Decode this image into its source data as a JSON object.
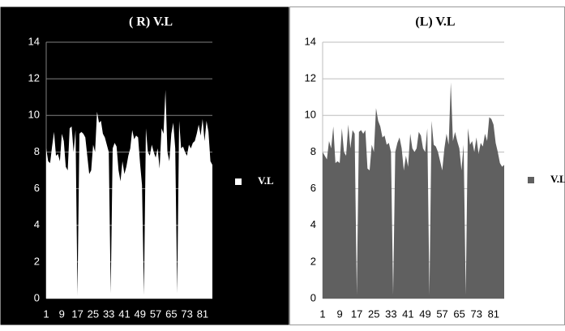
{
  "chart_data": [
    {
      "type": "area",
      "title": "( R) V.L",
      "background": "#000000",
      "text_color": "#ffffff",
      "grid_color": "#808080",
      "categories": [
        1,
        null,
        null,
        null,
        null,
        null,
        null,
        null,
        9,
        null,
        null,
        null,
        null,
        null,
        null,
        null,
        17,
        null,
        null,
        null,
        null,
        null,
        null,
        null,
        25,
        null,
        null,
        null,
        null,
        null,
        null,
        null,
        33,
        null,
        null,
        null,
        null,
        null,
        null,
        null,
        41,
        null,
        null,
        null,
        null,
        null,
        null,
        null,
        49,
        null,
        null,
        null,
        null,
        null,
        null,
        null,
        57,
        null,
        null,
        null,
        null,
        null,
        null,
        null,
        65,
        null,
        null,
        null,
        null,
        null,
        null,
        null,
        73,
        null,
        null,
        null,
        null,
        null,
        null,
        null,
        81,
        null,
        null,
        null,
        null,
        null
      ],
      "series": [
        {
          "name": "V.L",
          "color": "#ffffff",
          "values": [
            8.2,
            7.5,
            7.4,
            8.3,
            9.1,
            7.8,
            7.9,
            7.5,
            9.0,
            8.6,
            7.2,
            7.0,
            9.3,
            9.4,
            8.0,
            9.2,
            0.2,
            9.0,
            9.1,
            9.0,
            8.8,
            7.8,
            6.8,
            7.0,
            8.4,
            8.0,
            10.2,
            9.6,
            9.7,
            9.0,
            8.8,
            8.4,
            8.0,
            0.3,
            8.2,
            8.5,
            8.3,
            7.0,
            6.4,
            7.5,
            6.8,
            7.2,
            7.8,
            8.2,
            9.2,
            8.7,
            8.9,
            8.8,
            7.4,
            6.2,
            0.2,
            9.3,
            8.0,
            7.8,
            8.4,
            8.0,
            7.7,
            8.2,
            7.1,
            9.3,
            9.0,
            11.4,
            8.0,
            7.5,
            9.0,
            9.6,
            8.2,
            0.3,
            9.7,
            8.2,
            8.3,
            8.0,
            7.8,
            8.4,
            8.2,
            8.5,
            8.6,
            9.0,
            9.5,
            8.9,
            9.8,
            8.6,
            9.7,
            9.1,
            7.5,
            7.3
          ]
        }
      ],
      "ylim": [
        0,
        14
      ],
      "yticks": [
        0,
        2,
        4,
        6,
        8,
        10,
        12,
        14
      ],
      "grid": true,
      "legend": "right"
    },
    {
      "type": "area",
      "title": "(L) V.L",
      "background": "#ffffff",
      "text_color": "#000000",
      "grid_color": "#bdbdbd",
      "categories": [
        1,
        null,
        null,
        null,
        null,
        null,
        null,
        null,
        9,
        null,
        null,
        null,
        null,
        null,
        null,
        null,
        17,
        null,
        null,
        null,
        null,
        null,
        null,
        null,
        25,
        null,
        null,
        null,
        null,
        null,
        null,
        null,
        33,
        null,
        null,
        null,
        null,
        null,
        null,
        null,
        41,
        null,
        null,
        null,
        null,
        null,
        null,
        null,
        49,
        null,
        null,
        null,
        null,
        null,
        null,
        null,
        57,
        null,
        null,
        null,
        null,
        null,
        null,
        null,
        65,
        null,
        null,
        null,
        null,
        null,
        null,
        null,
        73,
        null,
        null,
        null,
        null,
        null,
        null,
        null,
        81,
        null,
        null,
        null,
        null,
        null
      ],
      "series": [
        {
          "name": "V.L",
          "color": "#606060",
          "values": [
            8.0,
            7.8,
            7.6,
            8.6,
            8.2,
            9.4,
            7.4,
            7.5,
            7.4,
            9.3,
            8.0,
            7.8,
            9.5,
            8.2,
            9.2,
            9.0,
            0.2,
            9.1,
            9.2,
            9.0,
            9.2,
            7.1,
            7.0,
            8.4,
            8.0,
            10.4,
            9.7,
            9.4,
            8.8,
            8.9,
            8.4,
            8.5,
            8.0,
            0.2,
            8.0,
            8.5,
            8.8,
            8.2,
            7.0,
            7.8,
            7.2,
            9.0,
            8.2,
            8.0,
            8.2,
            9.1,
            8.9,
            8.2,
            8.0,
            9.3,
            0.2,
            9.7,
            8.4,
            8.3,
            8.0,
            7.5,
            7.0,
            8.2,
            9.0,
            8.4,
            11.8,
            8.6,
            9.1,
            8.6,
            8.2,
            7.0,
            8.4,
            0.2,
            9.3,
            8.4,
            8.6,
            8.0,
            8.8,
            7.9,
            8.5,
            8.3,
            9.0,
            8.6,
            9.9,
            9.8,
            9.5,
            8.5,
            8.0,
            7.4,
            7.2,
            7.3
          ]
        }
      ],
      "ylim": [
        0,
        14
      ],
      "yticks": [
        0,
        2,
        4,
        6,
        8,
        10,
        12,
        14
      ],
      "grid": true,
      "legend": "right"
    }
  ]
}
